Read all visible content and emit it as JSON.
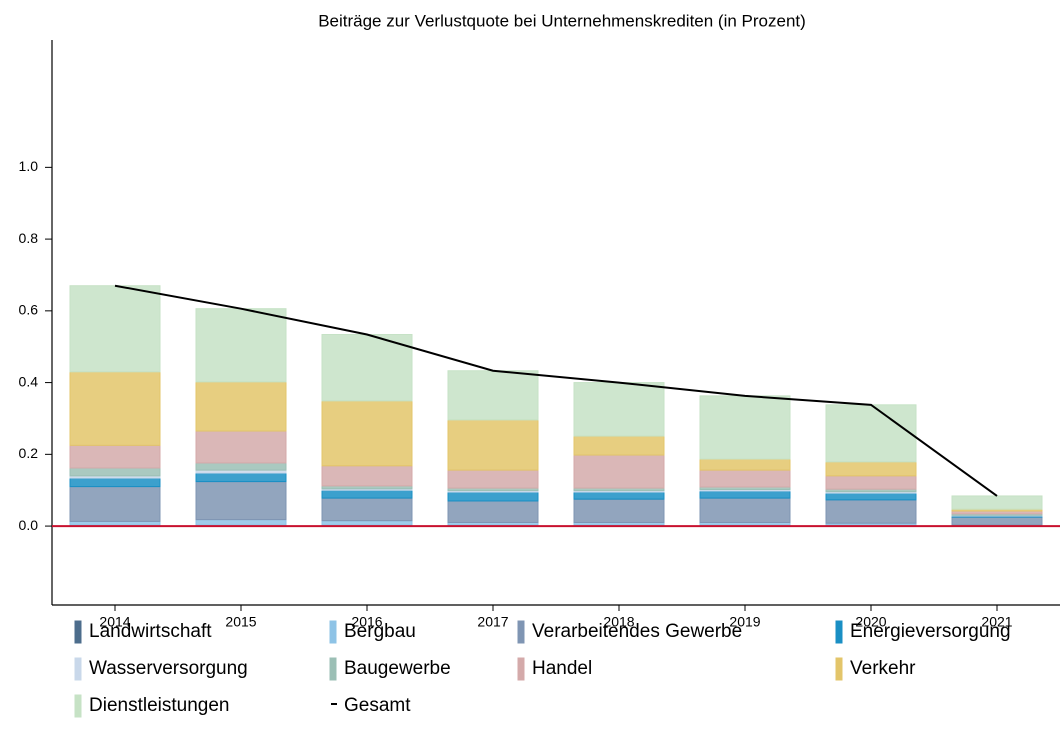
{
  "chart_data": {
    "type": "bar",
    "stacked": true,
    "title": "Beiträge zur Verlustquote bei Unternehmenskrediten (in Prozent)",
    "categories": [
      "2014",
      "2015",
      "2016",
      "2017",
      "2018",
      "2019",
      "2020",
      "2021"
    ],
    "series": [
      {
        "name": "Landwirtschaft",
        "color": "#4d6d8c",
        "values": [
          0.003,
          0.003,
          0.003,
          0.003,
          0.003,
          0.003,
          0.003,
          0.001
        ]
      },
      {
        "name": "Bergbau",
        "color": "#8ec3e6",
        "values": [
          0.01,
          0.015,
          0.012,
          0.007,
          0.007,
          0.007,
          0.005,
          0.002
        ]
      },
      {
        "name": "Verarbeitendes Gewerbe",
        "color": "#7f95b3",
        "values": [
          0.097,
          0.106,
          0.063,
          0.06,
          0.065,
          0.068,
          0.065,
          0.022
        ]
      },
      {
        "name": "Energieversorgung",
        "color": "#1a8fc4",
        "values": [
          0.024,
          0.024,
          0.022,
          0.025,
          0.02,
          0.02,
          0.019,
          0.003
        ]
      },
      {
        "name": "Wasserversorgung",
        "color": "#c9d8ea",
        "values": [
          0.006,
          0.008,
          0.004,
          0.004,
          0.004,
          0.004,
          0.004,
          0.002
        ]
      },
      {
        "name": "Baugewerbe",
        "color": "#9bbfb5",
        "values": [
          0.022,
          0.02,
          0.008,
          0.007,
          0.007,
          0.007,
          0.007,
          0.004
        ]
      },
      {
        "name": "Handel",
        "color": "#d4aaaa",
        "values": [
          0.063,
          0.089,
          0.056,
          0.05,
          0.092,
          0.047,
          0.037,
          0.008
        ]
      },
      {
        "name": "Verkehr",
        "color": "#e3c56a",
        "values": [
          0.205,
          0.137,
          0.181,
          0.14,
          0.053,
          0.031,
          0.039,
          0.005
        ]
      },
      {
        "name": "Dienstleistungen",
        "color": "#c6e2c5",
        "values": [
          0.24,
          0.204,
          0.185,
          0.137,
          0.149,
          0.176,
          0.159,
          0.037
        ]
      }
    ],
    "line": {
      "name": "Gesamt",
      "color": "#000000",
      "values": [
        0.67,
        0.606,
        0.534,
        0.433,
        0.4,
        0.363,
        0.338,
        0.084
      ]
    },
    "ylim": [
      -0.22,
      1.355
    ],
    "yticks": [
      {
        "value": 0,
        "label": "0.0"
      },
      0.2,
      0.4,
      0.6,
      0.8,
      {
        "value": 1,
        "label": "1.0"
      }
    ],
    "zero_line_color": "#c8102e"
  }
}
